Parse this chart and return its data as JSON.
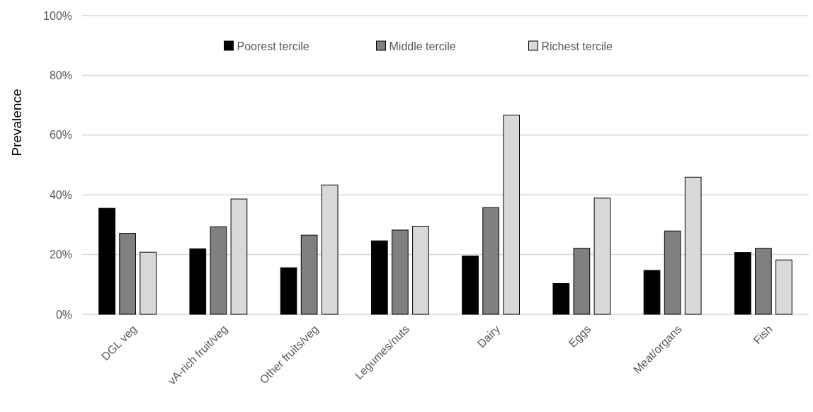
{
  "chart_data": {
    "type": "bar",
    "ylabel": "Prevalence",
    "categories": [
      "DGL veg",
      "vA-rich fruit/veg",
      "Other fruits/veg",
      "Legumes/nuts",
      "Dairy",
      "Eggs",
      "Meat/organs",
      "Fish"
    ],
    "series": [
      {
        "name": "Poorest tercile",
        "color": "#000000",
        "values": [
          35.5,
          21.9,
          15.6,
          24.6,
          19.5,
          10.3,
          14.7,
          20.7
        ]
      },
      {
        "name": "Middle tercile",
        "color": "#808080",
        "values": [
          27.1,
          29.3,
          26.5,
          28.2,
          35.7,
          22.1,
          27.9,
          22.1
        ]
      },
      {
        "name": "Richest tercile",
        "color": "#d9d9d9",
        "values": [
          20.8,
          38.6,
          43.3,
          29.5,
          66.7,
          38.9,
          45.9,
          18.2
        ]
      }
    ],
    "ylim": [
      0,
      100
    ],
    "yticks": [
      {
        "value": 0,
        "label": "0%"
      },
      {
        "value": 20,
        "label": "20%"
      },
      {
        "value": 40,
        "label": "40%"
      },
      {
        "value": 60,
        "label": "60%"
      },
      {
        "value": 80,
        "label": "80%"
      },
      {
        "value": 100,
        "label": "100%"
      }
    ],
    "grid": "y",
    "legend": "top"
  }
}
